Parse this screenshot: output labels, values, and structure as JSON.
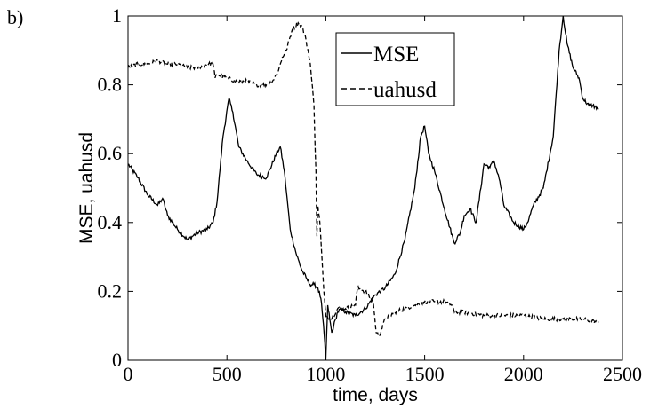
{
  "panel_label": "b)",
  "chart_data": {
    "type": "line",
    "xlabel": "time, days",
    "ylabel": "MSE, uahusd",
    "xlim": [
      0,
      2500
    ],
    "ylim": [
      0,
      1
    ],
    "xticks": [
      0,
      500,
      1000,
      1500,
      2000,
      2500
    ],
    "yticks": [
      0,
      0.2,
      0.4,
      0.6,
      0.8,
      1
    ],
    "xtick_labels": [
      "0",
      "500",
      "1000",
      "1500",
      "2000",
      "2500"
    ],
    "ytick_labels": [
      "0",
      "0.2",
      "0.4",
      "0.6",
      "0.8",
      "1"
    ],
    "grid": false,
    "legend_position": "top-center",
    "series": [
      {
        "name": "MSE",
        "style": "solid",
        "x": [
          0,
          50,
          100,
          150,
          175,
          200,
          250,
          300,
          350,
          400,
          430,
          450,
          480,
          510,
          530,
          560,
          600,
          650,
          700,
          750,
          770,
          790,
          820,
          850,
          880,
          900,
          920,
          940,
          960,
          975,
          985,
          995,
          1000,
          1010,
          1020,
          1030,
          1040,
          1050,
          1060,
          1080,
          1100,
          1150,
          1200,
          1250,
          1300,
          1350,
          1400,
          1450,
          1480,
          1500,
          1520,
          1550,
          1600,
          1650,
          1680,
          1700,
          1730,
          1760,
          1800,
          1830,
          1850,
          1880,
          1900,
          1950,
          2000,
          2020,
          2050,
          2100,
          2150,
          2180,
          2200,
          2220,
          2250,
          2280,
          2300,
          2330,
          2350,
          2380
        ],
        "y": [
          0.57,
          0.53,
          0.48,
          0.45,
          0.47,
          0.42,
          0.38,
          0.35,
          0.37,
          0.38,
          0.4,
          0.46,
          0.65,
          0.76,
          0.72,
          0.62,
          0.58,
          0.54,
          0.53,
          0.6,
          0.62,
          0.55,
          0.38,
          0.31,
          0.26,
          0.24,
          0.22,
          0.22,
          0.21,
          0.18,
          0.12,
          0.05,
          0.0,
          0.16,
          0.12,
          0.08,
          0.1,
          0.12,
          0.14,
          0.15,
          0.14,
          0.13,
          0.15,
          0.19,
          0.21,
          0.25,
          0.35,
          0.5,
          0.65,
          0.68,
          0.6,
          0.55,
          0.44,
          0.34,
          0.37,
          0.42,
          0.44,
          0.4,
          0.57,
          0.56,
          0.58,
          0.52,
          0.45,
          0.4,
          0.38,
          0.4,
          0.45,
          0.5,
          0.65,
          0.9,
          1.0,
          0.92,
          0.85,
          0.82,
          0.76,
          0.74,
          0.74,
          0.73
        ]
      },
      {
        "name": "uahusd",
        "style": "dashed",
        "x": [
          0,
          50,
          100,
          150,
          200,
          250,
          300,
          350,
          400,
          430,
          440,
          450,
          500,
          550,
          600,
          650,
          700,
          730,
          760,
          780,
          800,
          830,
          860,
          880,
          900,
          920,
          940,
          950,
          955,
          960,
          970,
          980,
          990,
          1000,
          1030,
          1060,
          1100,
          1150,
          1160,
          1200,
          1240,
          1255,
          1270,
          1300,
          1350,
          1400,
          1450,
          1500,
          1550,
          1600,
          1640,
          1650,
          1700,
          1800,
          1900,
          2000,
          2100,
          2200,
          2300,
          2380
        ],
        "y": [
          0.85,
          0.86,
          0.86,
          0.87,
          0.86,
          0.86,
          0.85,
          0.85,
          0.86,
          0.86,
          0.82,
          0.83,
          0.82,
          0.81,
          0.81,
          0.8,
          0.8,
          0.81,
          0.84,
          0.88,
          0.9,
          0.96,
          0.98,
          0.97,
          0.93,
          0.87,
          0.74,
          0.55,
          0.36,
          0.45,
          0.4,
          0.3,
          0.2,
          0.13,
          0.12,
          0.15,
          0.15,
          0.16,
          0.21,
          0.2,
          0.17,
          0.08,
          0.07,
          0.12,
          0.14,
          0.15,
          0.16,
          0.17,
          0.17,
          0.17,
          0.16,
          0.14,
          0.14,
          0.13,
          0.13,
          0.13,
          0.12,
          0.12,
          0.12,
          0.11
        ]
      }
    ]
  }
}
